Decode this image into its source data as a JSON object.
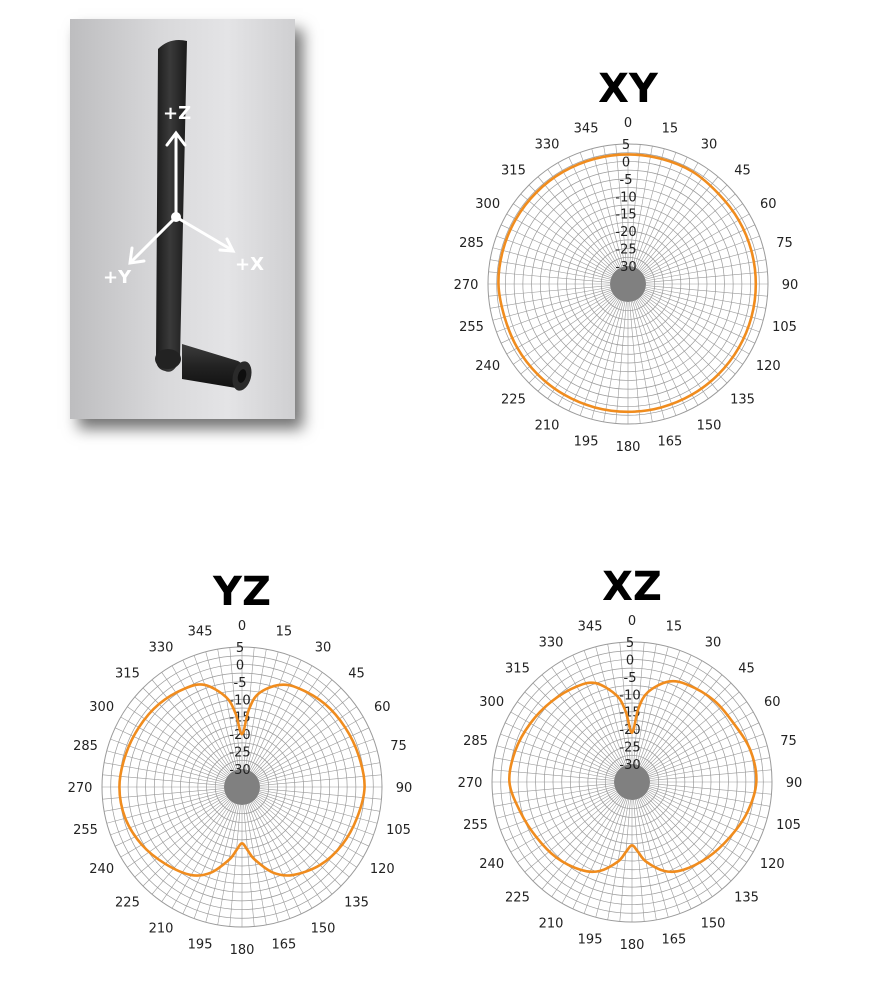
{
  "product_photo": {
    "axis_labels": {
      "z": "+Z",
      "x": "+X",
      "y": "+Y"
    }
  },
  "style": {
    "grid_color": "#9a9a9a",
    "pattern_color": "#f08c1e",
    "center_color": "#808080"
  },
  "chart_data": [
    {
      "type": "polar",
      "title": "XY",
      "r_ticks": [
        5,
        0,
        -5,
        -10,
        -15,
        -20,
        -25,
        -30
      ],
      "r_range": [
        -30,
        5
      ],
      "angle_ticks": [
        0,
        15,
        30,
        45,
        60,
        75,
        90,
        105,
        120,
        135,
        150,
        165,
        180,
        195,
        210,
        225,
        240,
        255,
        270,
        285,
        300,
        315,
        330,
        345
      ],
      "series": [
        {
          "angles": [
            0,
            15,
            30,
            45,
            60,
            75,
            90,
            105,
            120,
            135,
            150,
            165,
            180,
            195,
            210,
            225,
            240,
            255,
            270,
            285,
            300,
            315,
            330,
            345
          ],
          "values": [
            2,
            2,
            2,
            1.5,
            1.5,
            1.5,
            1.5,
            1.5,
            1.5,
            1.5,
            1.5,
            1.5,
            1.5,
            1.5,
            1.5,
            1.5,
            1.5,
            1.5,
            2,
            2,
            2,
            2,
            2,
            2
          ]
        }
      ]
    },
    {
      "type": "polar",
      "title": "YZ",
      "r_ticks": [
        5,
        0,
        -5,
        -10,
        -15,
        -20,
        -25,
        -30
      ],
      "r_range": [
        -30,
        5
      ],
      "angle_ticks": [
        0,
        15,
        30,
        45,
        60,
        75,
        90,
        105,
        120,
        135,
        150,
        165,
        180,
        195,
        210,
        225,
        240,
        255,
        270,
        285,
        300,
        315,
        330,
        345
      ],
      "series": [
        {
          "angles": [
            0,
            5,
            10,
            20,
            30,
            45,
            60,
            75,
            90,
            105,
            120,
            135,
            150,
            160,
            170,
            175,
            180,
            185,
            190,
            200,
            210,
            225,
            240,
            255,
            270,
            285,
            300,
            315,
            330,
            340,
            350,
            355
          ],
          "values": [
            -20,
            -13,
            -8,
            -4,
            -2.5,
            -1.5,
            -1,
            -0.5,
            0,
            -1,
            -2,
            -3.5,
            -6,
            -9,
            -14,
            -17,
            -19,
            -17,
            -14,
            -9,
            -6,
            -4,
            -2,
            -0.5,
            0,
            -0.5,
            -1,
            -1.5,
            -2.5,
            -4,
            -9,
            -14
          ]
        }
      ]
    },
    {
      "type": "polar",
      "title": "XZ",
      "r_ticks": [
        5,
        0,
        -5,
        -10,
        -15,
        -20,
        -25,
        -30
      ],
      "r_range": [
        -30,
        5
      ],
      "angle_ticks": [
        0,
        15,
        30,
        45,
        60,
        75,
        90,
        105,
        120,
        135,
        150,
        165,
        180,
        195,
        210,
        225,
        240,
        255,
        270,
        285,
        300,
        315,
        330,
        345
      ],
      "series": [
        {
          "angles": [
            0,
            5,
            10,
            20,
            30,
            45,
            60,
            75,
            90,
            105,
            120,
            135,
            150,
            160,
            170,
            175,
            180,
            185,
            190,
            200,
            210,
            225,
            240,
            255,
            270,
            285,
            300,
            315,
            330,
            340,
            350,
            355
          ],
          "values": [
            -21,
            -14,
            -9,
            -4.5,
            -3,
            -2,
            -1.5,
            0,
            0.5,
            -1,
            -3,
            -4.5,
            -6,
            -8,
            -12,
            -15,
            -17,
            -15,
            -12,
            -8,
            -6,
            -4.5,
            -3.5,
            -2,
            0,
            -0.5,
            -1.5,
            -2.5,
            -3.5,
            -5,
            -10,
            -15
          ]
        }
      ]
    }
  ]
}
